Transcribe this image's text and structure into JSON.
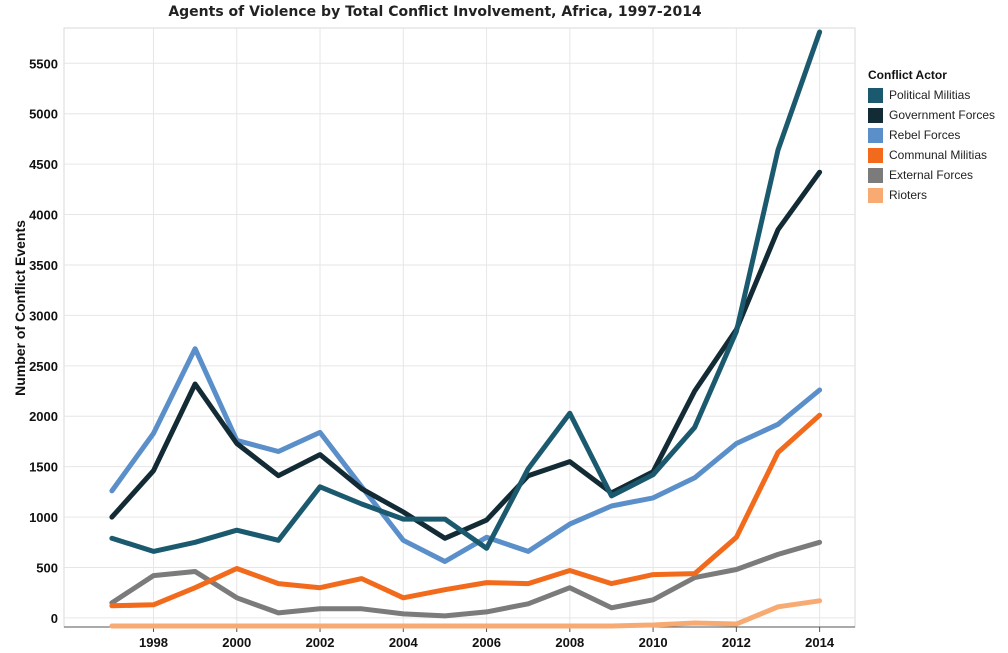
{
  "chart_data": {
    "type": "line",
    "title": "Agents of Violence by Total Conflict Involvement, Africa, 1997-2014",
    "xlabel": "",
    "ylabel": "Number of Conflict Events",
    "x": [
      1997,
      1998,
      1999,
      2000,
      2001,
      2002,
      2003,
      2004,
      2005,
      2006,
      2007,
      2008,
      2009,
      2010,
      2011,
      2012,
      2013,
      2014
    ],
    "xlim": [
      1995.85,
      2014.85
    ],
    "ylim": [
      -90,
      5850
    ],
    "xticks": [
      "1998",
      "2000",
      "2002",
      "2004",
      "2006",
      "2008",
      "2010",
      "2012",
      "2014"
    ],
    "yticks": [
      "0",
      "500",
      "1000",
      "1500",
      "2000",
      "2500",
      "3000",
      "3500",
      "4000",
      "4500",
      "5000",
      "5500"
    ],
    "grid": true,
    "legend": {
      "title": "Conflict Actor",
      "placement": "right"
    },
    "series": [
      {
        "name": "Political Militias",
        "color": "#1b5a6e",
        "values": [
          790,
          660,
          750,
          870,
          770,
          1300,
          1130,
          980,
          980,
          690,
          1480,
          2030,
          1210,
          1420,
          1890,
          2840,
          4640,
          5810
        ]
      },
      {
        "name": "Government Forces",
        "color": "#132b35",
        "values": [
          1000,
          1460,
          2320,
          1730,
          1410,
          1620,
          1280,
          1050,
          790,
          970,
          1410,
          1550,
          1240,
          1450,
          2250,
          2860,
          3850,
          4420
        ]
      },
      {
        "name": "Rebel Forces",
        "color": "#5a8fc9",
        "values": [
          1260,
          1830,
          2670,
          1760,
          1650,
          1840,
          1300,
          770,
          560,
          800,
          660,
          930,
          1110,
          1190,
          1390,
          1730,
          1920,
          2260
        ]
      },
      {
        "name": "Communal Militias",
        "color": "#f26b1d",
        "values": [
          120,
          130,
          300,
          490,
          340,
          300,
          390,
          200,
          280,
          350,
          340,
          470,
          340,
          430,
          440,
          800,
          1640,
          2010
        ]
      },
      {
        "name": "External Forces",
        "color": "#7b7b7b",
        "values": [
          150,
          420,
          460,
          200,
          50,
          90,
          90,
          40,
          20,
          60,
          140,
          300,
          100,
          180,
          400,
          480,
          630,
          750
        ]
      },
      {
        "name": "Rioters",
        "color": "#f7ab72",
        "values": [
          -80,
          -80,
          -80,
          -80,
          -80,
          -80,
          -80,
          -80,
          -80,
          -80,
          -80,
          -80,
          -80,
          -70,
          -50,
          -60,
          110,
          170
        ]
      }
    ]
  }
}
